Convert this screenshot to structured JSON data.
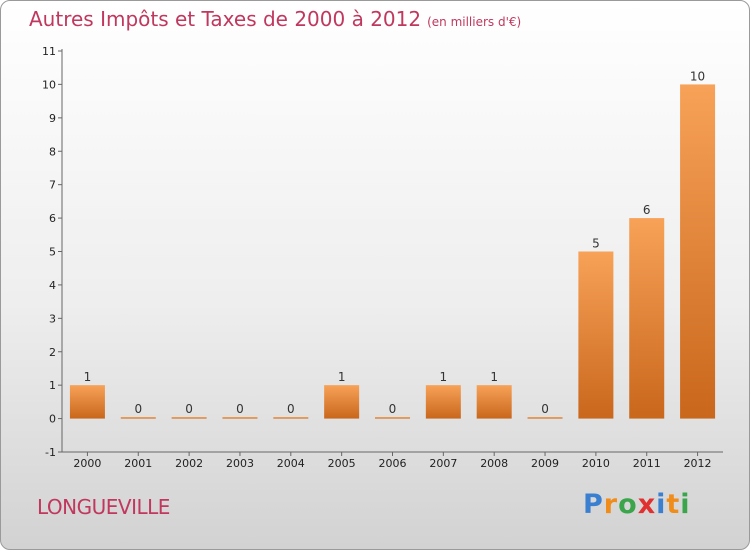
{
  "title": "Autres Impôts et Taxes de 2000 à 2012",
  "title_unit": "(en milliers d'€)",
  "place": "LONGUEVILLE",
  "logo": {
    "text": "Proxiti",
    "colors": [
      "#3a7fd0",
      "#f08c1a",
      "#3aa54a",
      "#e0302f",
      "#3a7fd0",
      "#f08c1a",
      "#3aa54a"
    ]
  },
  "colors": {
    "title": "#c0385e",
    "bar_light": "#f7a258",
    "bar_dark": "#c9671c"
  },
  "chart_data": {
    "type": "bar",
    "categories": [
      "2000",
      "2001",
      "2002",
      "2003",
      "2004",
      "2005",
      "2006",
      "2007",
      "2008",
      "2009",
      "2010",
      "2011",
      "2012"
    ],
    "values": [
      1,
      0,
      0,
      0,
      0,
      1,
      0,
      1,
      1,
      0,
      5,
      6,
      10
    ],
    "ylim": [
      -1,
      11
    ],
    "yticks": [
      -1,
      0,
      1,
      2,
      3,
      4,
      5,
      6,
      7,
      8,
      9,
      10,
      11
    ],
    "grid": false
  }
}
